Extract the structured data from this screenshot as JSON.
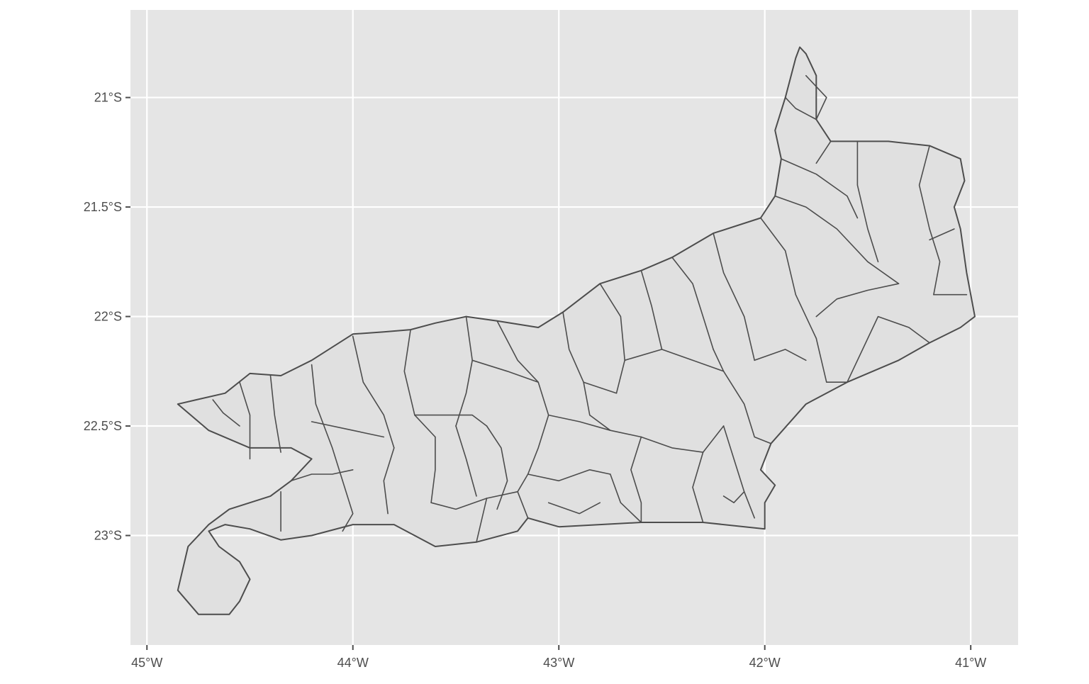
{
  "colors": {
    "panel_background": "#e5e5e5",
    "grid_line": "#ffffff",
    "region_fill": "#e0e0e0",
    "region_border": "#4d4d4d",
    "tick_text": "#4d4d4d"
  },
  "axes": {
    "x_range": [
      -45.08,
      -40.77
    ],
    "y_range": [
      -23.5,
      -20.6
    ],
    "x_ticks": [
      {
        "value": -45,
        "label": "45°W"
      },
      {
        "value": -44,
        "label": "44°W"
      },
      {
        "value": -43,
        "label": "43°W"
      },
      {
        "value": -42,
        "label": "42°W"
      },
      {
        "value": -41,
        "label": "41°W"
      }
    ],
    "y_ticks": [
      {
        "value": -21,
        "label": "21°S"
      },
      {
        "value": -21.5,
        "label": "21.5°S"
      },
      {
        "value": -22,
        "label": "22°S"
      },
      {
        "value": -22.5,
        "label": "22.5°S"
      },
      {
        "value": -23,
        "label": "23°S"
      }
    ]
  },
  "map": {
    "region": "Rio de Janeiro state municipalities",
    "outline": [
      [
        -44.85,
        -22.4
      ],
      [
        -44.76,
        -22.38
      ],
      [
        -44.62,
        -22.35
      ],
      [
        -44.5,
        -22.26
      ],
      [
        -44.35,
        -22.27
      ],
      [
        -44.2,
        -22.2
      ],
      [
        -44.0,
        -22.08
      ],
      [
        -43.85,
        -22.07
      ],
      [
        -43.72,
        -22.06
      ],
      [
        -43.6,
        -22.03
      ],
      [
        -43.45,
        -22.0
      ],
      [
        -43.3,
        -22.02
      ],
      [
        -43.1,
        -22.05
      ],
      [
        -42.98,
        -21.98
      ],
      [
        -42.8,
        -21.85
      ],
      [
        -42.6,
        -21.79
      ],
      [
        -42.45,
        -21.73
      ],
      [
        -42.25,
        -21.62
      ],
      [
        -42.02,
        -21.55
      ],
      [
        -41.95,
        -21.45
      ],
      [
        -41.92,
        -21.28
      ],
      [
        -41.95,
        -21.15
      ],
      [
        -41.9,
        -21.0
      ],
      [
        -41.85,
        -20.82
      ],
      [
        -41.83,
        -20.77
      ],
      [
        -41.8,
        -20.8
      ],
      [
        -41.75,
        -20.9
      ],
      [
        -41.75,
        -21.1
      ],
      [
        -41.68,
        -21.2
      ],
      [
        -41.55,
        -21.2
      ],
      [
        -41.4,
        -21.2
      ],
      [
        -41.2,
        -21.22
      ],
      [
        -41.05,
        -21.28
      ],
      [
        -41.03,
        -21.38
      ],
      [
        -41.08,
        -21.5
      ],
      [
        -41.05,
        -21.6
      ],
      [
        -41.02,
        -21.8
      ],
      [
        -40.98,
        -22.0
      ],
      [
        -41.05,
        -22.05
      ],
      [
        -41.2,
        -22.12
      ],
      [
        -41.35,
        -22.2
      ],
      [
        -41.6,
        -22.3
      ],
      [
        -41.8,
        -22.4
      ],
      [
        -41.97,
        -22.58
      ],
      [
        -42.02,
        -22.7
      ],
      [
        -41.95,
        -22.77
      ],
      [
        -42.0,
        -22.85
      ],
      [
        -42.0,
        -22.97
      ],
      [
        -42.3,
        -22.94
      ],
      [
        -42.6,
        -22.94
      ],
      [
        -43.0,
        -22.96
      ],
      [
        -43.15,
        -22.92
      ],
      [
        -43.2,
        -22.98
      ],
      [
        -43.4,
        -23.03
      ],
      [
        -43.6,
        -23.05
      ],
      [
        -43.8,
        -22.95
      ],
      [
        -44.0,
        -22.95
      ],
      [
        -44.2,
        -23.0
      ],
      [
        -44.35,
        -23.02
      ],
      [
        -44.5,
        -22.97
      ],
      [
        -44.62,
        -22.95
      ],
      [
        -44.7,
        -22.98
      ],
      [
        -44.65,
        -23.05
      ],
      [
        -44.55,
        -23.12
      ],
      [
        -44.5,
        -23.2
      ],
      [
        -44.55,
        -23.3
      ],
      [
        -44.6,
        -23.36
      ],
      [
        -44.75,
        -23.36
      ],
      [
        -44.85,
        -23.25
      ],
      [
        -44.8,
        -23.05
      ],
      [
        -44.7,
        -22.95
      ],
      [
        -44.6,
        -22.88
      ],
      [
        -44.4,
        -22.82
      ],
      [
        -44.3,
        -22.75
      ],
      [
        -44.2,
        -22.65
      ],
      [
        -44.3,
        -22.6
      ],
      [
        -44.5,
        -22.6
      ],
      [
        -44.7,
        -22.52
      ],
      [
        -44.85,
        -22.4
      ]
    ],
    "borders": [
      [
        [
          -44.68,
          -22.38
        ],
        [
          -44.63,
          -22.44
        ],
        [
          -44.55,
          -22.5
        ]
      ],
      [
        [
          -44.55,
          -22.3
        ],
        [
          -44.5,
          -22.45
        ],
        [
          -44.5,
          -22.65
        ]
      ],
      [
        [
          -44.4,
          -22.27
        ],
        [
          -44.38,
          -22.45
        ],
        [
          -44.35,
          -22.62
        ]
      ],
      [
        [
          -44.2,
          -22.22
        ],
        [
          -44.18,
          -22.4
        ],
        [
          -44.1,
          -22.6
        ],
        [
          -44.05,
          -22.75
        ]
      ],
      [
        [
          -44.3,
          -22.75
        ],
        [
          -44.2,
          -22.72
        ],
        [
          -44.1,
          -22.72
        ],
        [
          -44.0,
          -22.7
        ]
      ],
      [
        [
          -44.05,
          -22.75
        ],
        [
          -44.0,
          -22.9
        ],
        [
          -44.05,
          -22.98
        ]
      ],
      [
        [
          -44.35,
          -22.8
        ],
        [
          -44.35,
          -22.98
        ]
      ],
      [
        [
          -44.2,
          -22.48
        ],
        [
          -44.0,
          -22.52
        ],
        [
          -43.85,
          -22.55
        ]
      ],
      [
        [
          -44.0,
          -22.09
        ],
        [
          -43.95,
          -22.3
        ],
        [
          -43.85,
          -22.45
        ],
        [
          -43.8,
          -22.6
        ]
      ],
      [
        [
          -43.8,
          -22.6
        ],
        [
          -43.85,
          -22.75
        ],
        [
          -43.83,
          -22.9
        ]
      ],
      [
        [
          -43.72,
          -22.06
        ],
        [
          -43.75,
          -22.25
        ],
        [
          -43.7,
          -22.45
        ],
        [
          -43.6,
          -22.55
        ]
      ],
      [
        [
          -43.45,
          -22.0
        ],
        [
          -43.42,
          -22.2
        ],
        [
          -43.45,
          -22.35
        ],
        [
          -43.5,
          -22.5
        ]
      ],
      [
        [
          -43.7,
          -22.45
        ],
        [
          -43.55,
          -22.45
        ],
        [
          -43.42,
          -22.45
        ],
        [
          -43.35,
          -22.5
        ]
      ],
      [
        [
          -43.6,
          -22.55
        ],
        [
          -43.6,
          -22.7
        ],
        [
          -43.62,
          -22.85
        ]
      ],
      [
        [
          -43.5,
          -22.5
        ],
        [
          -43.45,
          -22.65
        ],
        [
          -43.4,
          -22.82
        ]
      ],
      [
        [
          -43.35,
          -22.5
        ],
        [
          -43.28,
          -22.6
        ],
        [
          -43.25,
          -22.75
        ],
        [
          -43.3,
          -22.88
        ]
      ],
      [
        [
          -43.62,
          -22.85
        ],
        [
          -43.5,
          -22.88
        ],
        [
          -43.35,
          -22.83
        ],
        [
          -43.2,
          -22.8
        ]
      ],
      [
        [
          -43.3,
          -22.02
        ],
        [
          -43.2,
          -22.2
        ],
        [
          -43.1,
          -22.3
        ],
        [
          -43.05,
          -22.45
        ]
      ],
      [
        [
          -43.42,
          -22.2
        ],
        [
          -43.25,
          -22.25
        ],
        [
          -43.1,
          -22.3
        ]
      ],
      [
        [
          -43.05,
          -22.45
        ],
        [
          -43.1,
          -22.6
        ],
        [
          -43.15,
          -22.72
        ],
        [
          -43.2,
          -22.8
        ]
      ],
      [
        [
          -43.05,
          -22.45
        ],
        [
          -42.9,
          -22.48
        ],
        [
          -42.75,
          -22.52
        ],
        [
          -42.6,
          -22.55
        ]
      ],
      [
        [
          -42.98,
          -21.98
        ],
        [
          -42.95,
          -22.15
        ],
        [
          -42.88,
          -22.3
        ],
        [
          -42.85,
          -22.45
        ]
      ],
      [
        [
          -42.8,
          -21.85
        ],
        [
          -42.7,
          -22.0
        ],
        [
          -42.68,
          -22.2
        ],
        [
          -42.72,
          -22.35
        ]
      ],
      [
        [
          -42.6,
          -21.79
        ],
        [
          -42.55,
          -21.95
        ],
        [
          -42.5,
          -22.15
        ]
      ],
      [
        [
          -42.5,
          -22.15
        ],
        [
          -42.35,
          -22.2
        ],
        [
          -42.2,
          -22.25
        ]
      ],
      [
        [
          -42.68,
          -22.2
        ],
        [
          -42.5,
          -22.15
        ]
      ],
      [
        [
          -42.45,
          -21.73
        ],
        [
          -42.35,
          -21.85
        ],
        [
          -42.3,
          -22.0
        ],
        [
          -42.25,
          -22.15
        ]
      ],
      [
        [
          -42.25,
          -21.62
        ],
        [
          -42.2,
          -21.8
        ],
        [
          -42.1,
          -22.0
        ],
        [
          -42.05,
          -22.2
        ]
      ],
      [
        [
          -42.02,
          -21.55
        ],
        [
          -41.9,
          -21.7
        ],
        [
          -41.85,
          -21.9
        ],
        [
          -41.75,
          -22.1
        ]
      ],
      [
        [
          -41.95,
          -21.45
        ],
        [
          -41.8,
          -21.5
        ],
        [
          -41.65,
          -21.6
        ],
        [
          -41.5,
          -21.75
        ],
        [
          -41.35,
          -21.85
        ]
      ],
      [
        [
          -41.92,
          -21.28
        ],
        [
          -41.75,
          -21.35
        ],
        [
          -41.6,
          -21.45
        ],
        [
          -41.55,
          -21.55
        ]
      ],
      [
        [
          -41.55,
          -21.2
        ],
        [
          -41.55,
          -21.4
        ],
        [
          -41.5,
          -21.6
        ],
        [
          -41.45,
          -21.75
        ]
      ],
      [
        [
          -41.2,
          -21.22
        ],
        [
          -41.25,
          -21.4
        ],
        [
          -41.2,
          -21.6
        ],
        [
          -41.15,
          -21.75
        ],
        [
          -41.18,
          -21.9
        ]
      ],
      [
        [
          -41.18,
          -21.9
        ],
        [
          -41.02,
          -21.9
        ]
      ],
      [
        [
          -41.08,
          -21.6
        ],
        [
          -41.2,
          -21.65
        ]
      ],
      [
        [
          -41.75,
          -21.1
        ],
        [
          -41.7,
          -21.0
        ],
        [
          -41.8,
          -20.9
        ]
      ],
      [
        [
          -41.75,
          -21.1
        ],
        [
          -41.85,
          -21.05
        ],
        [
          -41.9,
          -21.0
        ]
      ],
      [
        [
          -41.68,
          -21.2
        ],
        [
          -41.75,
          -21.3
        ]
      ],
      [
        [
          -41.35,
          -21.85
        ],
        [
          -41.5,
          -21.88
        ],
        [
          -41.65,
          -21.92
        ],
        [
          -41.75,
          -22.0
        ]
      ],
      [
        [
          -41.75,
          -22.1
        ],
        [
          -41.7,
          -22.3
        ],
        [
          -41.6,
          -22.3
        ]
      ],
      [
        [
          -41.6,
          -22.3
        ],
        [
          -41.45,
          -22.0
        ],
        [
          -41.3,
          -22.05
        ],
        [
          -41.2,
          -22.12
        ]
      ],
      [
        [
          -42.2,
          -22.25
        ],
        [
          -42.1,
          -22.4
        ],
        [
          -42.05,
          -22.55
        ],
        [
          -41.97,
          -22.58
        ]
      ],
      [
        [
          -42.25,
          -22.15
        ],
        [
          -42.2,
          -22.25
        ]
      ],
      [
        [
          -42.05,
          -22.2
        ],
        [
          -41.9,
          -22.15
        ],
        [
          -41.8,
          -22.2
        ]
      ],
      [
        [
          -42.6,
          -22.55
        ],
        [
          -42.45,
          -22.6
        ],
        [
          -42.3,
          -22.62
        ],
        [
          -42.2,
          -22.5
        ]
      ],
      [
        [
          -42.85,
          -22.45
        ],
        [
          -42.75,
          -22.52
        ]
      ],
      [
        [
          -42.6,
          -22.55
        ],
        [
          -42.65,
          -22.7
        ],
        [
          -42.6,
          -22.85
        ],
        [
          -42.6,
          -22.94
        ]
      ],
      [
        [
          -42.3,
          -22.62
        ],
        [
          -42.35,
          -22.78
        ],
        [
          -42.3,
          -22.94
        ]
      ],
      [
        [
          -42.2,
          -22.5
        ],
        [
          -42.15,
          -22.65
        ],
        [
          -42.1,
          -22.8
        ],
        [
          -42.05,
          -22.92
        ]
      ],
      [
        [
          -42.88,
          -22.3
        ],
        [
          -42.72,
          -22.35
        ]
      ],
      [
        [
          -43.15,
          -22.72
        ],
        [
          -43.0,
          -22.75
        ],
        [
          -42.85,
          -22.7
        ],
        [
          -42.75,
          -22.72
        ]
      ],
      [
        [
          -42.75,
          -22.72
        ],
        [
          -42.7,
          -22.85
        ],
        [
          -42.6,
          -22.94
        ]
      ],
      [
        [
          -43.05,
          -22.85
        ],
        [
          -42.9,
          -22.9
        ],
        [
          -42.8,
          -22.85
        ]
      ],
      [
        [
          -43.2,
          -22.8
        ],
        [
          -43.15,
          -22.92
        ]
      ],
      [
        [
          -43.35,
          -22.83
        ],
        [
          -43.4,
          -23.03
        ]
      ],
      [
        [
          -42.1,
          -22.8
        ],
        [
          -42.15,
          -22.85
        ],
        [
          -42.2,
          -22.82
        ]
      ],
      [
        [
          -41.97,
          -22.58
        ],
        [
          -42.02,
          -22.7
        ]
      ]
    ]
  }
}
